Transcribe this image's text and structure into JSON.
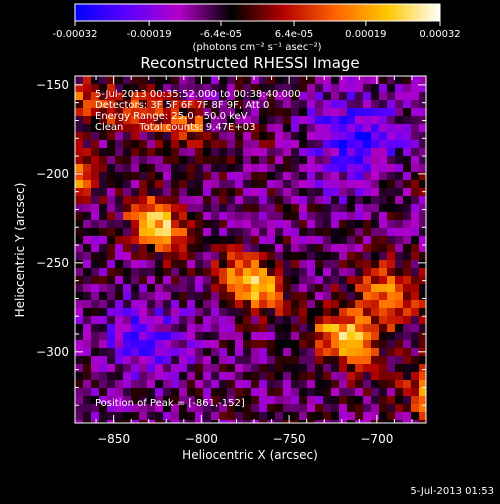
{
  "colorbar": {
    "tick_labels": [
      "-0.00032",
      "-0.00019",
      "-6.4e-05",
      "6.4e-05",
      "0.00019",
      "0.00032"
    ],
    "tick_values": [
      -0.00032,
      -0.00019,
      -6.4e-05,
      6.4e-05,
      0.00019,
      0.00032
    ],
    "range": [
      -0.00032,
      0.00032
    ],
    "units": "(photons cm⁻² s⁻¹ asec⁻²)",
    "colors": [
      "#0000ff",
      "#5a00ff",
      "#b400c8",
      "#000000",
      "#b40000",
      "#ff6400",
      "#ffc800",
      "#ffffff"
    ]
  },
  "footer": {
    "timestamp": "5-Jul-2013 01:53"
  },
  "chart_data": {
    "type": "heatmap",
    "title": "Reconstructed RHESSI Image",
    "xlabel": "Heliocentric X (arcsec)",
    "ylabel": "Heliocentric Y (arcsec)",
    "xlim": [
      -872,
      -672
    ],
    "ylim": [
      -340,
      -145
    ],
    "x_ticks": [
      -850,
      -800,
      -750,
      -700
    ],
    "y_ticks": [
      -300,
      -250,
      -200,
      -150
    ],
    "grid": false,
    "annotations": [
      "5-Jul-2013 00:35:52.000 to 00:38:40.000",
      "Detectors: 3F 5F 6F 7F 8F 9F, Att 0",
      "Energy Range: 25.0 - 50.0 keV",
      "Clean     Total counts: 9.47E+03"
    ],
    "peak_label": "Position of Peak = [-861,-152]",
    "peak": [
      -861,
      -152
    ]
  }
}
